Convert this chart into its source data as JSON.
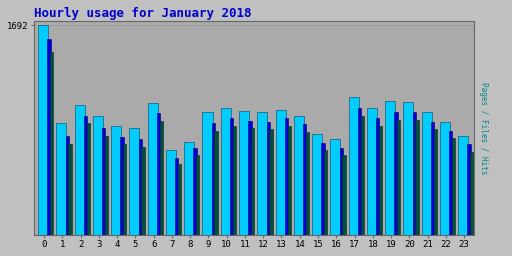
{
  "title": "Hourly usage for January 2018",
  "title_color": "#0000cc",
  "title_fontsize": 9,
  "background_color": "#c0c0c0",
  "plot_bg_color": "#aaaaaa",
  "ymax": 1692,
  "hours": [
    0,
    1,
    2,
    3,
    4,
    5,
    6,
    7,
    8,
    9,
    10,
    11,
    12,
    13,
    14,
    15,
    16,
    17,
    18,
    19,
    20,
    21,
    22,
    23
  ],
  "hits": [
    1692,
    900,
    1050,
    960,
    880,
    860,
    1060,
    680,
    750,
    990,
    1020,
    1000,
    990,
    1010,
    960,
    810,
    770,
    1110,
    1020,
    1080,
    1070,
    990,
    910,
    800
  ],
  "pages": [
    1580,
    800,
    960,
    860,
    790,
    770,
    980,
    620,
    700,
    900,
    940,
    920,
    910,
    940,
    890,
    740,
    700,
    1020,
    940,
    990,
    990,
    910,
    840,
    730
  ],
  "files": [
    1480,
    730,
    900,
    800,
    730,
    710,
    920,
    570,
    640,
    840,
    880,
    860,
    850,
    880,
    830,
    680,
    640,
    960,
    880,
    930,
    930,
    850,
    780,
    670
  ],
  "hits_color": "#00ccff",
  "pages_color": "#0000dd",
  "files_color": "#005040",
  "hits_edge": "#004466",
  "pages_edge": "#000066",
  "files_edge": "#003020"
}
